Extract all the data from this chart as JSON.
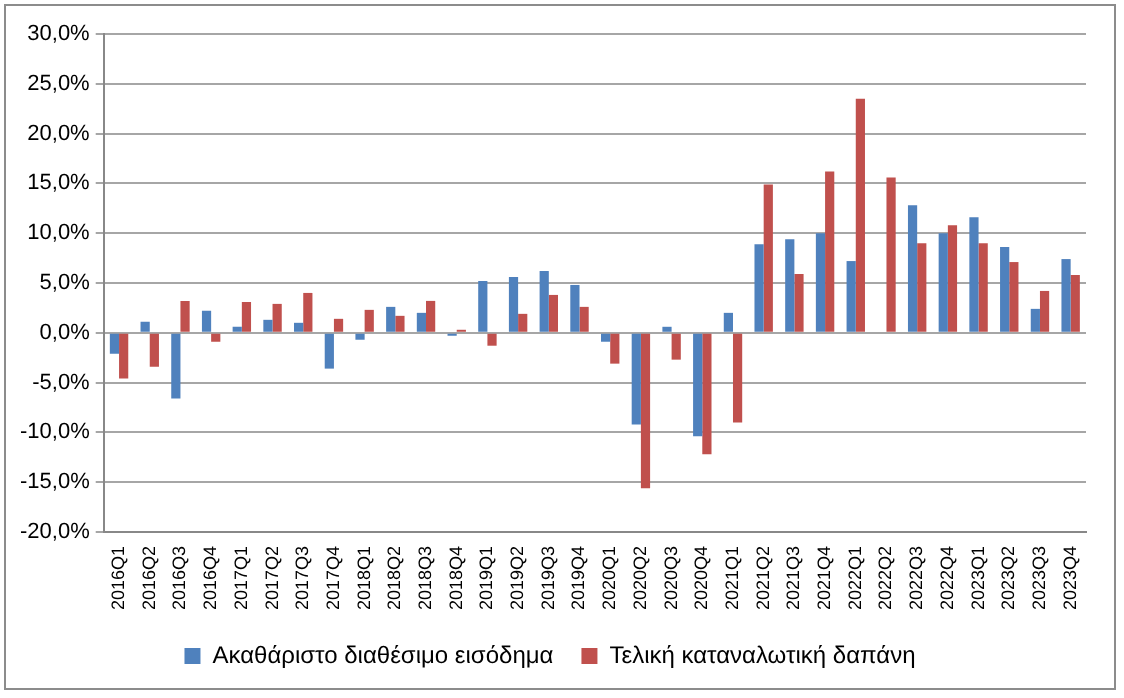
{
  "chart_data": {
    "type": "bar",
    "categories": [
      "2016Q1",
      "2016Q2",
      "2016Q3",
      "2016Q4",
      "2017Q1",
      "2017Q2",
      "2017Q3",
      "2017Q4",
      "2018Q1",
      "2018Q2",
      "2018Q3",
      "2018Q4",
      "2019Q1",
      "2019Q2",
      "2019Q3",
      "2019Q4",
      "2020Q1",
      "2020Q2",
      "2020Q3",
      "2020Q4",
      "2021Q1",
      "2021Q2",
      "2021Q3",
      "2021Q4",
      "2022Q1",
      "2022Q2",
      "2022Q3",
      "2022Q4",
      "2023Q1",
      "2023Q2",
      "2023Q3",
      "2023Q4"
    ],
    "series": [
      {
        "name": "Ακαθάριστο διαθέσιμο εισόδημα",
        "color": "#4f81bd",
        "values": [
          -2.1,
          1.1,
          -6.6,
          2.2,
          0.6,
          1.3,
          1.0,
          -3.6,
          -0.7,
          2.6,
          2.0,
          -0.3,
          5.2,
          5.6,
          6.2,
          4.8,
          -0.9,
          -9.2,
          0.6,
          -10.4,
          2.0,
          8.9,
          9.4,
          10.0,
          7.2,
          null,
          12.8,
          10.0,
          11.6,
          8.6,
          2.4,
          7.4
        ]
      },
      {
        "name": "Τελική καταναλωτική δαπάνη",
        "color": "#c0504d",
        "values": [
          -4.6,
          -3.4,
          3.2,
          -0.9,
          3.1,
          2.9,
          4.0,
          1.4,
          2.3,
          1.7,
          3.2,
          0.3,
          -1.3,
          1.9,
          3.8,
          2.6,
          -3.1,
          -15.6,
          -2.7,
          -12.2,
          -9.0,
          14.9,
          5.9,
          16.2,
          23.5,
          15.6,
          9.0,
          10.8,
          9.0,
          7.1,
          4.2,
          5.8
        ]
      }
    ],
    "ylim": [
      -20,
      30
    ],
    "yticks": [
      {
        "value": -20,
        "label": "-20,0%"
      },
      {
        "value": -15,
        "label": "-15,0%"
      },
      {
        "value": -10,
        "label": "-10,0%"
      },
      {
        "value": -5,
        "label": "-5,0%"
      },
      {
        "value": 0,
        "label": "0,0%"
      },
      {
        "value": 5,
        "label": "5,0%"
      },
      {
        "value": 10,
        "label": "10,0%"
      },
      {
        "value": 15,
        "label": "15,0%"
      },
      {
        "value": 20,
        "label": "20,0%"
      },
      {
        "value": 25,
        "label": "25,0%"
      },
      {
        "value": 30,
        "label": "30,0%"
      }
    ],
    "grid": "y",
    "legend": "bottom"
  }
}
